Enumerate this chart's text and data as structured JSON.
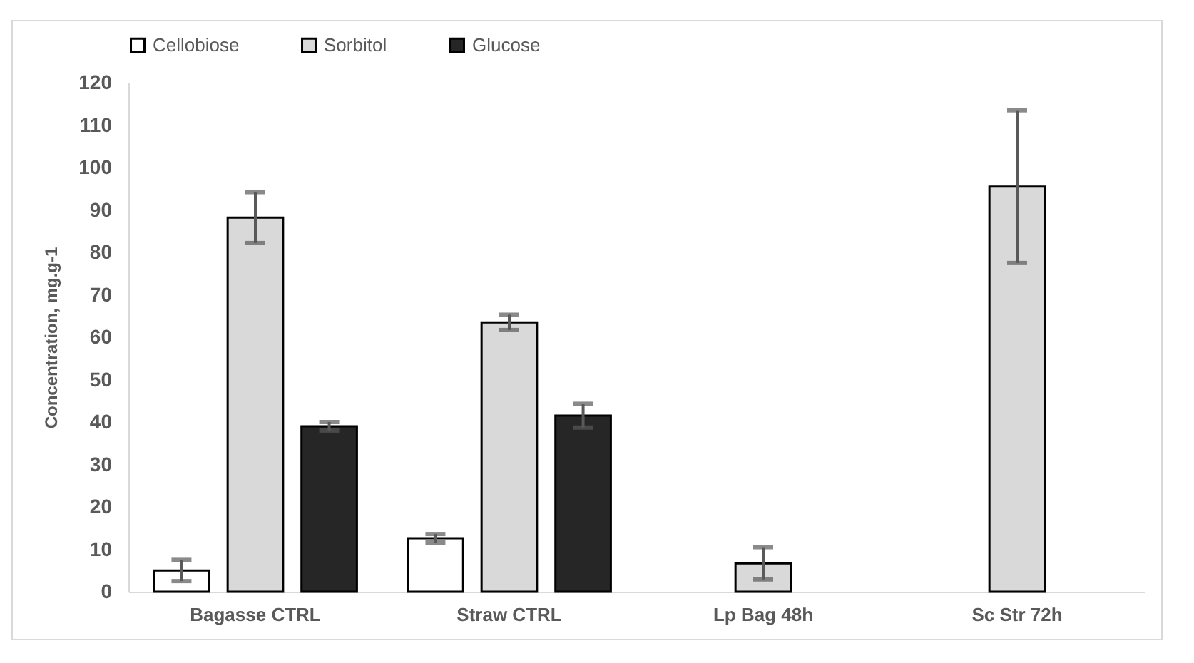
{
  "chart_data": {
    "type": "bar",
    "ylabel": "Concentration, mg.g-1",
    "categories": [
      "Bagasse CTRL",
      "Straw CTRL",
      "Lp Bag 48h",
      "Sc Str 72h"
    ],
    "series": [
      {
        "name": "Cellobiose",
        "color": "#ffffff",
        "values": [
          5,
          12.6,
          null,
          null
        ],
        "errors": [
          2.5,
          1,
          null,
          null
        ]
      },
      {
        "name": "Sorbitol",
        "color": "#d9d9d9",
        "values": [
          88.2,
          63.5,
          6.7,
          95.5
        ],
        "errors": [
          6,
          1.8,
          3.8,
          18
        ]
      },
      {
        "name": "Glucose",
        "color": "#262626",
        "values": [
          39,
          41.5,
          null,
          null
        ],
        "errors": [
          1,
          2.8,
          null,
          null
        ]
      }
    ],
    "ylim": [
      0,
      120
    ],
    "yticks": [
      0,
      10,
      20,
      30,
      40,
      50,
      60,
      70,
      80,
      90,
      100,
      110,
      120
    ],
    "grid": false,
    "legend": "top"
  }
}
